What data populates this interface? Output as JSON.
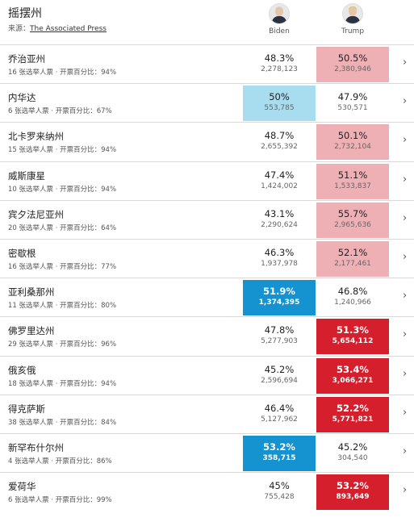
{
  "header": {
    "title": "摇摆州",
    "source_prefix": "来源：",
    "source_link": "The Associated Press"
  },
  "candidates": [
    {
      "name": "Biden"
    },
    {
      "name": "Trump"
    }
  ],
  "colors": {
    "biden_leading": "#a8dcef",
    "trump_leading": "#efb0b5",
    "biden_called": "#1593d1",
    "trump_called": "#d61f2d"
  },
  "rows": [
    {
      "state": "乔治亚州",
      "meta": "16 张选举人票 · 开票百分比：94%",
      "biden_pct": "48.3%",
      "biden_votes": "2,278,123",
      "trump_pct": "50.5%",
      "trump_votes": "2,380,946",
      "biden_status": "",
      "trump_status": "leading"
    },
    {
      "state": "内华达",
      "meta": "6 张选举人票 · 开票百分比：67%",
      "biden_pct": "50%",
      "biden_votes": "553,785",
      "trump_pct": "47.9%",
      "trump_votes": "530,571",
      "biden_status": "leading",
      "trump_status": ""
    },
    {
      "state": "北卡罗来纳州",
      "meta": "15 张选举人票 · 开票百分比：94%",
      "biden_pct": "48.7%",
      "biden_votes": "2,655,392",
      "trump_pct": "50.1%",
      "trump_votes": "2,732,104",
      "biden_status": "",
      "trump_status": "leading"
    },
    {
      "state": "威斯康星",
      "meta": "10 张选举人票 · 开票百分比：94%",
      "biden_pct": "47.4%",
      "biden_votes": "1,424,002",
      "trump_pct": "51.1%",
      "trump_votes": "1,533,837",
      "biden_status": "",
      "trump_status": "leading"
    },
    {
      "state": "宾夕法尼亚州",
      "meta": "20 张选举人票 · 开票百分比：64%",
      "biden_pct": "43.1%",
      "biden_votes": "2,290,624",
      "trump_pct": "55.7%",
      "trump_votes": "2,965,636",
      "biden_status": "",
      "trump_status": "leading"
    },
    {
      "state": "密歇根",
      "meta": "16 张选举人票 · 开票百分比：77%",
      "biden_pct": "46.3%",
      "biden_votes": "1,937,978",
      "trump_pct": "52.1%",
      "trump_votes": "2,177,461",
      "biden_status": "",
      "trump_status": "leading"
    },
    {
      "state": "亚利桑那州",
      "meta": "11 张选举人票 · 开票百分比：80%",
      "biden_pct": "51.9%",
      "biden_votes": "1,374,395",
      "trump_pct": "46.8%",
      "trump_votes": "1,240,966",
      "biden_status": "called",
      "trump_status": ""
    },
    {
      "state": "佛罗里达州",
      "meta": "29 张选举人票 · 开票百分比：96%",
      "biden_pct": "47.8%",
      "biden_votes": "5,277,903",
      "trump_pct": "51.3%",
      "trump_votes": "5,654,112",
      "biden_status": "",
      "trump_status": "called"
    },
    {
      "state": "俄亥俄",
      "meta": "18 张选举人票 · 开票百分比：94%",
      "biden_pct": "45.2%",
      "biden_votes": "2,596,694",
      "trump_pct": "53.4%",
      "trump_votes": "3,066,271",
      "biden_status": "",
      "trump_status": "called"
    },
    {
      "state": "得克萨斯",
      "meta": "38 张选举人票 · 开票百分比：84%",
      "biden_pct": "46.4%",
      "biden_votes": "5,127,962",
      "trump_pct": "52.2%",
      "trump_votes": "5,771,821",
      "biden_status": "",
      "trump_status": "called"
    },
    {
      "state": "新罕布什尔州",
      "meta": "4 张选举人票 · 开票百分比：86%",
      "biden_pct": "53.2%",
      "biden_votes": "358,715",
      "trump_pct": "45.2%",
      "trump_votes": "304,540",
      "biden_status": "called",
      "trump_status": ""
    },
    {
      "state": "爱荷华",
      "meta": "6 张选举人票 · 开票百分比：99%",
      "biden_pct": "45%",
      "biden_votes": "755,428",
      "trump_pct": "53.2%",
      "trump_votes": "893,649",
      "biden_status": "",
      "trump_status": "called"
    }
  ]
}
